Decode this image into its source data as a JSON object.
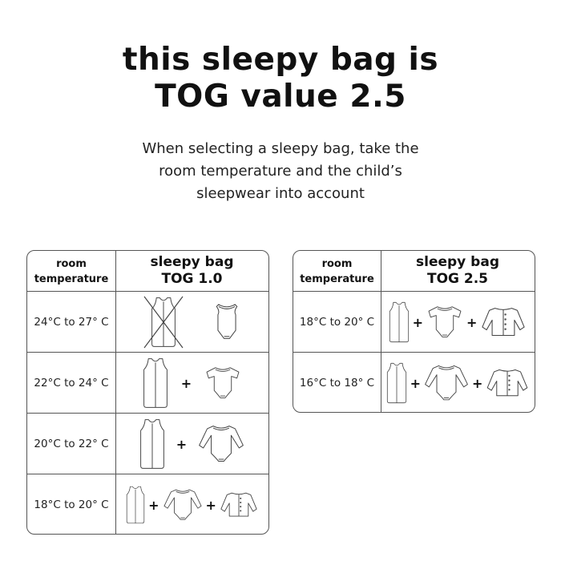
{
  "title": {
    "line1": "this sleepy bag is",
    "line2": "TOG value 2.5"
  },
  "subtitle": {
    "line1": "When selecting a sleepy bag, take the",
    "line2": "room temperature and the child’s",
    "line3": "sleepwear into account"
  },
  "plus": "+",
  "tables": [
    {
      "header": {
        "temp_line1": "room",
        "temp_line2": "temperature",
        "bag_line1": "sleepy bag",
        "bag_line2": "TOG 1.0"
      },
      "rows": [
        {
          "temperature": "24°C to 27° C",
          "icons": [
            "sleeping-bag-crossed",
            "sleeveless-bodysuit"
          ]
        },
        {
          "temperature": "22°C to 24° C",
          "icons": [
            "sleeping-bag",
            "short-sleeve-bodysuit"
          ]
        },
        {
          "temperature": "20°C to 22° C",
          "icons": [
            "sleeping-bag",
            "long-sleeve-bodysuit"
          ]
        },
        {
          "temperature": "18°C to 20° C",
          "icons": [
            "sleeping-bag",
            "long-sleeve-bodysuit",
            "cardigan"
          ]
        }
      ]
    },
    {
      "header": {
        "temp_line1": "room",
        "temp_line2": "temperature",
        "bag_line1": "sleepy bag",
        "bag_line2": "TOG 2.5"
      },
      "rows": [
        {
          "temperature": "18°C to 20° C",
          "icons": [
            "sleeping-bag",
            "short-sleeve-bodysuit",
            "cardigan"
          ]
        },
        {
          "temperature": "16°C to 18° C",
          "icons": [
            "sleeping-bag",
            "long-sleeve-bodysuit",
            "cardigan"
          ]
        }
      ]
    }
  ]
}
